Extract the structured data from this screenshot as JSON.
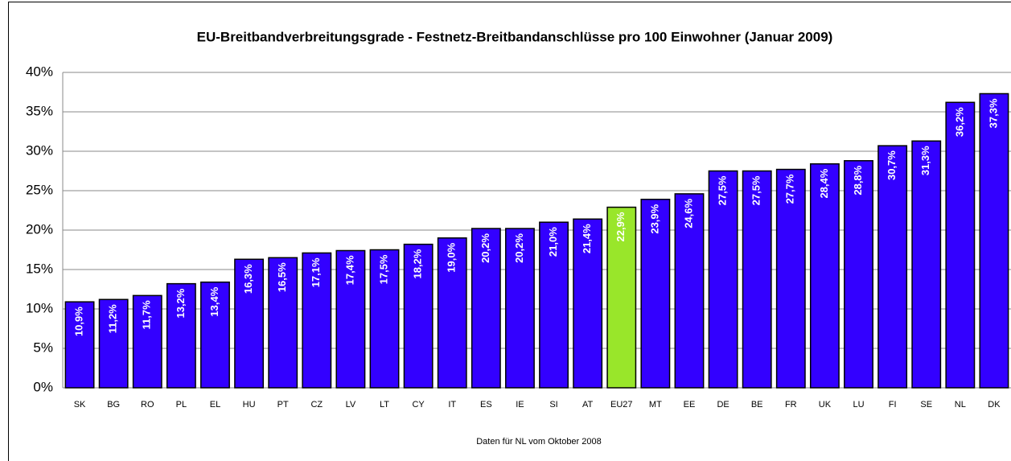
{
  "chart_data": {
    "type": "bar",
    "title": "EU-Breitbandverbreitungsgrade - Festnetz-Breitbandanschlüsse pro 100 Einwohner (Januar 2009)",
    "note": "Daten für NL vom Oktober 2008",
    "categories": [
      "SK",
      "BG",
      "RO",
      "PL",
      "EL",
      "HU",
      "PT",
      "CZ",
      "LV",
      "LT",
      "CY",
      "IT",
      "ES",
      "IE",
      "SI",
      "AT",
      "EU27",
      "MT",
      "EE",
      "DE",
      "BE",
      "FR",
      "UK",
      "LU",
      "FI",
      "SE",
      "NL",
      "DK"
    ],
    "values": [
      10.9,
      11.2,
      11.7,
      13.2,
      13.4,
      16.3,
      16.5,
      17.1,
      17.4,
      17.5,
      18.2,
      19.0,
      20.2,
      20.2,
      21.0,
      21.4,
      22.9,
      23.9,
      24.6,
      27.5,
      27.5,
      27.7,
      28.4,
      28.8,
      30.7,
      31.3,
      36.2,
      37.3
    ],
    "value_labels": [
      "10,9%",
      "11,2%",
      "11,7%",
      "13,2%",
      "13,4%",
      "16,3%",
      "16,5%",
      "17,1%",
      "17,4%",
      "17,5%",
      "18,2%",
      "19,0%",
      "20,2%",
      "20,2%",
      "21,0%",
      "21,4%",
      "22,9%",
      "23,9%",
      "24,6%",
      "27,5%",
      "27,5%",
      "27,7%",
      "28,4%",
      "28,8%",
      "30,7%",
      "31,3%",
      "36,2%",
      "37,3%"
    ],
    "colors": [
      "#3300ff",
      "#3300ff",
      "#3300ff",
      "#3300ff",
      "#3300ff",
      "#3300ff",
      "#3300ff",
      "#3300ff",
      "#3300ff",
      "#3300ff",
      "#3300ff",
      "#3300ff",
      "#3300ff",
      "#3300ff",
      "#3300ff",
      "#3300ff",
      "#99e62a",
      "#3300ff",
      "#3300ff",
      "#3300ff",
      "#3300ff",
      "#3300ff",
      "#3300ff",
      "#3300ff",
      "#3300ff",
      "#3300ff",
      "#3300ff",
      "#3300ff"
    ],
    "ylim": [
      0,
      40
    ],
    "yticks": [
      {
        "value": 0,
        "label": "0%"
      },
      {
        "value": 5,
        "label": "5%"
      },
      {
        "value": 10,
        "label": "10%"
      },
      {
        "value": 15,
        "label": "15%"
      },
      {
        "value": 20,
        "label": "20%"
      },
      {
        "value": 25,
        "label": "25%"
      },
      {
        "value": 30,
        "label": "30%"
      },
      {
        "value": 35,
        "label": "35%"
      },
      {
        "value": 40,
        "label": "40%"
      }
    ],
    "grid": true
  }
}
